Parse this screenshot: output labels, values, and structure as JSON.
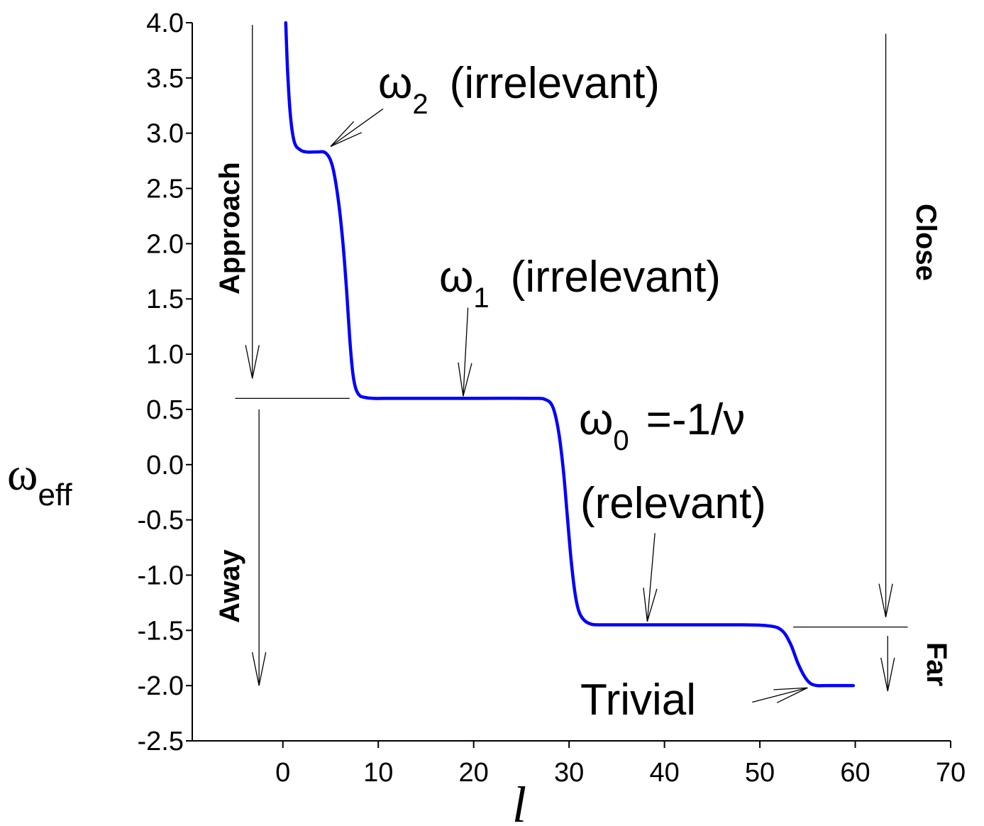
{
  "chart_data": {
    "type": "line",
    "xlabel": "l",
    "ylabel": {
      "main": "ω",
      "sub": "eff"
    },
    "xlim": [
      -9.5,
      70
    ],
    "ylim": [
      -2.5,
      4.0
    ],
    "x_ticks": [
      "0",
      "10",
      "20",
      "30",
      "40",
      "50",
      "60",
      "70"
    ],
    "x_tick_values": [
      0,
      10,
      20,
      30,
      40,
      50,
      60,
      70
    ],
    "y_ticks": [
      "4.0",
      "3.5",
      "3.0",
      "2.5",
      "2.0",
      "1.5",
      "1.0",
      "0.5",
      "0.0",
      "-0.5",
      "-1.0",
      "-1.5",
      "-2.0",
      "-2.5"
    ],
    "y_tick_values": [
      4.0,
      3.5,
      3.0,
      2.5,
      2.0,
      1.5,
      1.0,
      0.5,
      0.0,
      -0.5,
      -1.0,
      -1.5,
      -2.0,
      -2.5
    ],
    "series": [
      {
        "color": "#0000ff",
        "x": [
          0.3,
          0.5,
          0.8,
          1.2,
          1.8,
          2.5,
          3.5,
          4.5,
          5.2,
          5.8,
          6.3,
          6.7,
          7.0,
          7.3,
          7.6,
          8.0,
          8.5,
          9.5,
          12,
          20,
          26,
          27.5,
          28.3,
          28.9,
          29.4,
          29.8,
          30.2,
          30.6,
          31.0,
          31.5,
          32.2,
          33.5,
          40,
          48,
          51,
          52.3,
          53.2,
          54.0,
          54.7,
          55.3,
          56.0,
          57,
          59.8
        ],
        "y": [
          4.0,
          3.55,
          3.15,
          2.92,
          2.85,
          2.83,
          2.83,
          2.82,
          2.7,
          2.4,
          2.0,
          1.55,
          1.15,
          0.85,
          0.7,
          0.63,
          0.61,
          0.6,
          0.6,
          0.6,
          0.6,
          0.59,
          0.52,
          0.3,
          -0.05,
          -0.45,
          -0.85,
          -1.15,
          -1.32,
          -1.4,
          -1.44,
          -1.45,
          -1.45,
          -1.45,
          -1.46,
          -1.5,
          -1.62,
          -1.8,
          -1.92,
          -1.98,
          -2.0,
          -2.0,
          -2.0
        ]
      }
    ],
    "annotations": {
      "omega2": {
        "symbol": "ω",
        "sub": "2",
        "text": "(irrelevant)"
      },
      "omega1": {
        "symbol": "ω",
        "sub": "1",
        "text": "(irrelevant)"
      },
      "omega0": {
        "symbol": "ω",
        "sub": "0",
        "text": "=-1/ν",
        "line2": "(relevant)"
      },
      "trivial": "Trivial",
      "approach": "Approach",
      "away": "Away",
      "close": "Close",
      "far": "Far"
    },
    "reference_levels": [
      {
        "y": 0.6,
        "x_from": -5,
        "x_to": 7
      },
      {
        "y": -1.47,
        "x_from": 53.5,
        "x_to": 65.5
      }
    ],
    "arrows": [
      {
        "x_from": -3.2,
        "y_from": 3.98,
        "x_to": -3.2,
        "y_to": 0.78
      },
      {
        "x_from": -2.5,
        "y_from": 0.5,
        "x_to": -2.5,
        "y_to": -2.0
      },
      {
        "x_from": 63.2,
        "y_from": 3.9,
        "x_to": 63.2,
        "y_to": -1.38
      },
      {
        "x_from": 63.4,
        "y_from": -1.55,
        "x_to": 63.4,
        "y_to": -2.05
      },
      {
        "x_from": 10.5,
        "y_from": 3.22,
        "x_to": 5.0,
        "y_to": 2.88
      },
      {
        "x_from": 19.4,
        "y_from": 1.42,
        "x_to": 18.9,
        "y_to": 0.62
      },
      {
        "x_from": 39.0,
        "y_from": -0.62,
        "x_to": 38.2,
        "y_to": -1.42
      },
      {
        "x_from": 49.2,
        "y_from": -2.15,
        "x_to": 55.0,
        "y_to": -2.02
      }
    ]
  }
}
